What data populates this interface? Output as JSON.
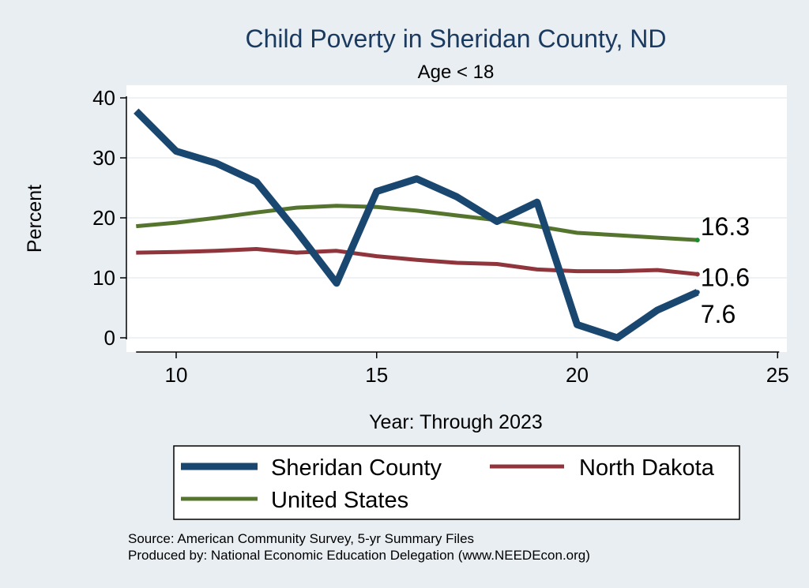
{
  "chart_data": {
    "type": "line",
    "title": "Child Poverty in Sheridan County, ND",
    "subtitle": "Age < 18",
    "xlabel": "Year: Through 2023",
    "ylabel": "Percent",
    "xlim": [
      9,
      25
    ],
    "ylim": [
      0,
      40
    ],
    "xticks": [
      10,
      15,
      20,
      25
    ],
    "yticks": [
      0,
      10,
      20,
      30,
      40
    ],
    "grid": true,
    "legend_position": "bottom",
    "x": [
      9,
      10,
      11,
      12,
      13,
      14,
      15,
      16,
      17,
      18,
      19,
      20,
      21,
      22,
      23
    ],
    "series": [
      {
        "name": "Sheridan County",
        "color": "#1a476f",
        "values": [
          37.8,
          31.1,
          29.1,
          26.0,
          17.8,
          9.1,
          24.4,
          26.5,
          23.5,
          19.4,
          22.6,
          2.2,
          0.0,
          4.6,
          7.6
        ],
        "end_label": "7.6"
      },
      {
        "name": "North Dakota",
        "color": "#90353b",
        "values": [
          14.2,
          14.3,
          14.5,
          14.8,
          14.2,
          14.5,
          13.6,
          13.0,
          12.5,
          12.3,
          11.4,
          11.1,
          11.1,
          11.3,
          10.6
        ],
        "end_label": "10.6"
      },
      {
        "name": "United States",
        "color": "#55752f",
        "values": [
          18.6,
          19.2,
          20.0,
          20.9,
          21.7,
          22.0,
          21.8,
          21.2,
          20.4,
          19.6,
          18.6,
          17.5,
          17.1,
          16.7,
          16.3
        ],
        "end_label": "16.3"
      }
    ],
    "source_lines": [
      "Source: American Community Survey, 5-yr Summary Files",
      "Produced by: National Economic Education Delegation (www.NEEDEcon.org)"
    ]
  }
}
